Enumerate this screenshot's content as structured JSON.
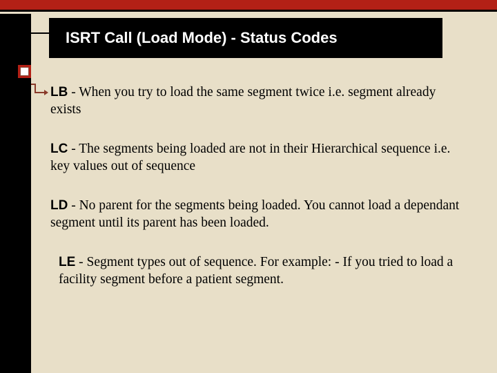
{
  "colors": {
    "background": "#e8dfc8",
    "accent": "#b32016",
    "black": "#000000",
    "white": "#ffffff",
    "connector": "#8a3a2a"
  },
  "title": "ISRT Call (Load Mode) - Status Codes",
  "entries": [
    {
      "code": "LB",
      "desc": " - When you try to load the same segment twice i.e. segment already exists",
      "indent": false
    },
    {
      "code": "LC",
      "desc": " - The segments being loaded are not in their Hierarchical sequence i.e. key values out of sequence",
      "indent": false
    },
    {
      "code": "LD",
      "desc": " - No parent for the segments being loaded. You cannot load a dependant segment until its parent has been loaded.",
      "indent": false
    },
    {
      "code": "LE",
      "desc": " - Segment types out of sequence. For example: - If you tried to  load a facility segment before a patient segment.",
      "indent": true
    }
  ]
}
